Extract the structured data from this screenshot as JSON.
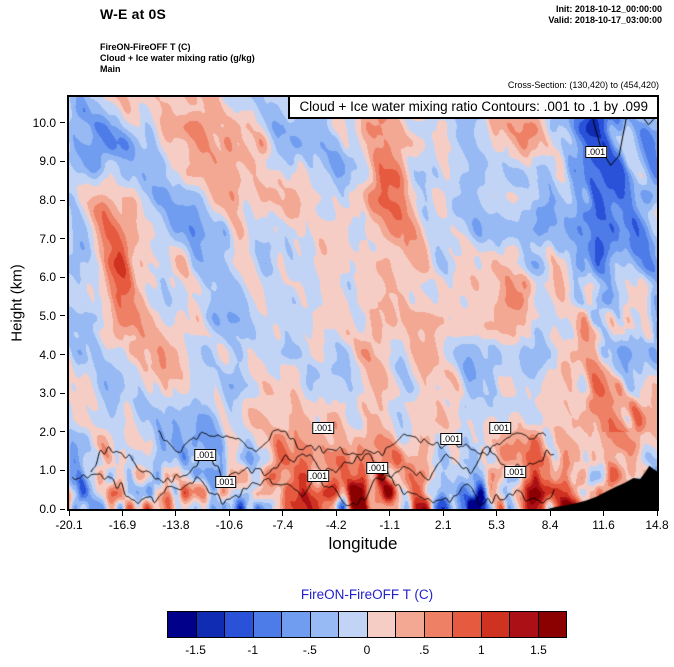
{
  "header": {
    "title": "W-E at 0S",
    "init": "Init: 2018-10-12_00:00:00",
    "valid": "Valid: 2018-10-17_03:00:00",
    "line1": "FireON-FireOFF T   (C)",
    "line2": "Cloud + Ice water mixing ratio   (g/kg)",
    "line3": "Main",
    "cross_section": "Cross-Section: (130,420) to (454,420)"
  },
  "plot": {
    "contour_info": "Cloud + Ice water mixing ratio Contours: .001 to .1 by .099",
    "xlabel": "longitude",
    "ylabel": "Height (km)"
  },
  "chart_data": {
    "type": "filled_contour_cross_section",
    "title": "W-E at 0S",
    "fill_variable": "FireON-FireOFF T (C)",
    "contour_variable": "Cloud + Ice water mixing ratio (g/kg)",
    "contour_levels_text": ".001 to .1 by .099",
    "contour_label": ".001",
    "xlabel": "longitude",
    "ylabel": "Height (km)",
    "x_range": [
      -20.1,
      14.8
    ],
    "y_range": [
      0,
      10.67
    ],
    "x_ticks": [
      "-20.1",
      "-16.9",
      "-13.8",
      "-10.6",
      "-7.4",
      "-4.2",
      "-1.1",
      "2.1",
      "5.3",
      "8.4",
      "11.6",
      "14.8"
    ],
    "y_ticks": [
      "0.0",
      "1.0",
      "2.0",
      "3.0",
      "4.0",
      "5.0",
      "6.0",
      "7.0",
      "8.0",
      "9.0",
      "10.0"
    ],
    "colorbar": {
      "title": "FireON-FireOFF T  (C)",
      "title_color": "#2222cc",
      "levels": [
        -1.5,
        -1.25,
        -1.0,
        -0.75,
        -0.5,
        -0.25,
        0,
        0.25,
        0.5,
        0.75,
        1.0,
        1.25,
        1.5
      ],
      "colors": [
        "#00008b",
        "#0f2cb3",
        "#2a52d9",
        "#4d7be8",
        "#719df0",
        "#97baf4",
        "#c2d4f5",
        "#f6cdc4",
        "#f3a894",
        "#ee8066",
        "#e65a40",
        "#d03222",
        "#ab1016",
        "#8b0000"
      ],
      "tick_labels": [
        "-1.5",
        "-1",
        "-.5",
        "0",
        ".5",
        "1",
        "1.5"
      ],
      "tick_positions": [
        1,
        3,
        5,
        7,
        9,
        11,
        13
      ]
    },
    "contour_label_positions": [
      {
        "lon": -12.0,
        "km": 1.4
      },
      {
        "lon": -10.8,
        "km": 0.7
      },
      {
        "lon": -5.3,
        "km": 0.85
      },
      {
        "lon": -5.0,
        "km": 2.1
      },
      {
        "lon": -1.8,
        "km": 1.05
      },
      {
        "lon": 2.6,
        "km": 1.8
      },
      {
        "lon": 5.5,
        "km": 2.1
      },
      {
        "lon": 6.4,
        "km": 0.95
      },
      {
        "lon": 11.2,
        "km": 9.25
      }
    ],
    "terrain_profile": [
      [
        8.3,
        0.0
      ],
      [
        8.8,
        0.05
      ],
      [
        9.4,
        0.1
      ],
      [
        10.0,
        0.15
      ],
      [
        10.6,
        0.22
      ],
      [
        11.2,
        0.32
      ],
      [
        11.8,
        0.45
      ],
      [
        12.4,
        0.58
      ],
      [
        12.9,
        0.68
      ],
      [
        13.4,
        0.8
      ],
      [
        13.8,
        0.78
      ],
      [
        14.1,
        0.95
      ],
      [
        14.35,
        1.12
      ],
      [
        14.55,
        1.05
      ],
      [
        14.8,
        0.98
      ]
    ],
    "field": {
      "seed": 42,
      "bias": 0.1,
      "shear": 0.6,
      "octaves": [
        {
          "sx": 4.2,
          "sy": 3.0,
          "amp": 0.42
        },
        {
          "sx": 1.9,
          "sy": 1.9,
          "amp": 0.45
        },
        {
          "sx": 0.95,
          "sy": 0.8,
          "amp": 0.32
        },
        {
          "sx": 0.5,
          "sy": 0.45,
          "amp": 0.18
        }
      ],
      "surface_boost": {
        "below_km": 2.4,
        "factor": 2.1,
        "extra_amp": 0.85,
        "extra_sx": 0.55,
        "extra_sy": 0.45
      },
      "right_boost": {
        "from_lon": 3.5,
        "factor": 1.75,
        "bias": -0.12,
        "above_km": 2.0
      }
    },
    "cloud_contours": {
      "bands": [
        {
          "from": -19.9,
          "to": 8.7,
          "base": 0.5,
          "amp": 0.4,
          "sx": 0.9
        },
        {
          "from": -18.8,
          "to": 8.7,
          "base": 1.1,
          "amp": 0.5,
          "sx": 1.2
        },
        {
          "from": -14.8,
          "to": 8.2,
          "base": 1.75,
          "amp": 0.45,
          "sx": 1.5
        }
      ],
      "polylines": [
        [
          [
            10.9,
            10.67
          ],
          [
            11.05,
            10.0
          ],
          [
            11.5,
            9.3
          ],
          [
            12.05,
            8.9
          ],
          [
            12.55,
            9.15
          ],
          [
            12.9,
            9.95
          ],
          [
            13.05,
            10.3
          ],
          [
            13.2,
            10.67
          ]
        ],
        [
          [
            13.7,
            10.67
          ],
          [
            13.95,
            10.15
          ],
          [
            14.3,
            9.95
          ],
          [
            14.65,
            10.12
          ],
          [
            14.8,
            10.35
          ]
        ]
      ]
    }
  }
}
